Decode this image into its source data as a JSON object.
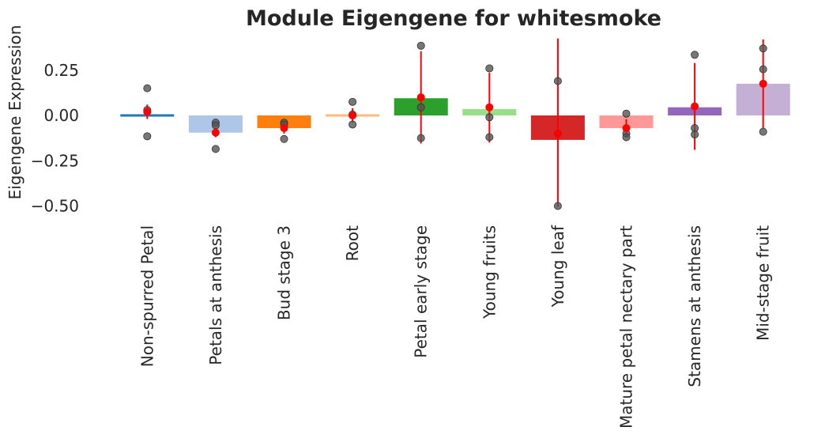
{
  "chart_data": {
    "type": "bar",
    "title": "Module Eigengene for whitesmoke",
    "xlabel": "",
    "ylabel": "Eigengene Expression",
    "ylim": [
      -0.55,
      0.42
    ],
    "yticks": [
      0.25,
      0.0,
      -0.25,
      -0.5
    ],
    "ytick_labels": [
      "0.25",
      "0.00",
      "−0.25",
      "−0.50"
    ],
    "grid": false,
    "categories": [
      "Non-spurred Petal",
      "Petals at anthesis",
      "Bud stage 3",
      "Root",
      "Petal early stage",
      "Young fruits",
      "Young leaf",
      "Mature petal nectary part",
      "Stamens at anthesis",
      "Mid-stage fruit"
    ],
    "values": [
      0.01,
      -0.095,
      -0.07,
      0.0,
      0.095,
      0.035,
      -0.135,
      -0.07,
      0.045,
      0.175
    ],
    "colors": [
      "#1f77b4",
      "#aec7e8",
      "#ff7f0e",
      "#ffbb78",
      "#2ca02c",
      "#98df8a",
      "#d62728",
      "#ff9896",
      "#9467bd",
      "#c5b0d5"
    ],
    "means": [
      0.02,
      -0.095,
      -0.07,
      0.0,
      0.1,
      0.045,
      -0.1,
      -0.07,
      0.05,
      0.175
    ],
    "errors": [
      [
        -0.02,
        0.06
      ],
      [
        -0.12,
        -0.07
      ],
      [
        -0.1,
        -0.04
      ],
      [
        -0.04,
        0.04
      ],
      [
        -0.155,
        0.355
      ],
      [
        -0.15,
        0.235
      ],
      [
        -0.505,
        0.425
      ],
      [
        -0.12,
        -0.02
      ],
      [
        -0.19,
        0.29
      ],
      [
        -0.07,
        0.42
      ]
    ],
    "points": [
      [
        0.15,
        0.03,
        -0.115
      ],
      [
        -0.04,
        -0.055,
        -0.185
      ],
      [
        -0.04,
        -0.05,
        -0.13
      ],
      [
        0.075,
        -0.05,
        0.005
      ],
      [
        0.385,
        0.045,
        -0.125
      ],
      [
        0.26,
        -0.01,
        -0.12
      ],
      [
        0.19,
        -0.1,
        -0.5
      ],
      [
        0.01,
        -0.1,
        -0.12
      ],
      [
        0.335,
        -0.07,
        -0.105
      ],
      [
        0.37,
        0.255,
        -0.09
      ]
    ],
    "mean_color": "#ff0000",
    "point_color": "#555555"
  }
}
